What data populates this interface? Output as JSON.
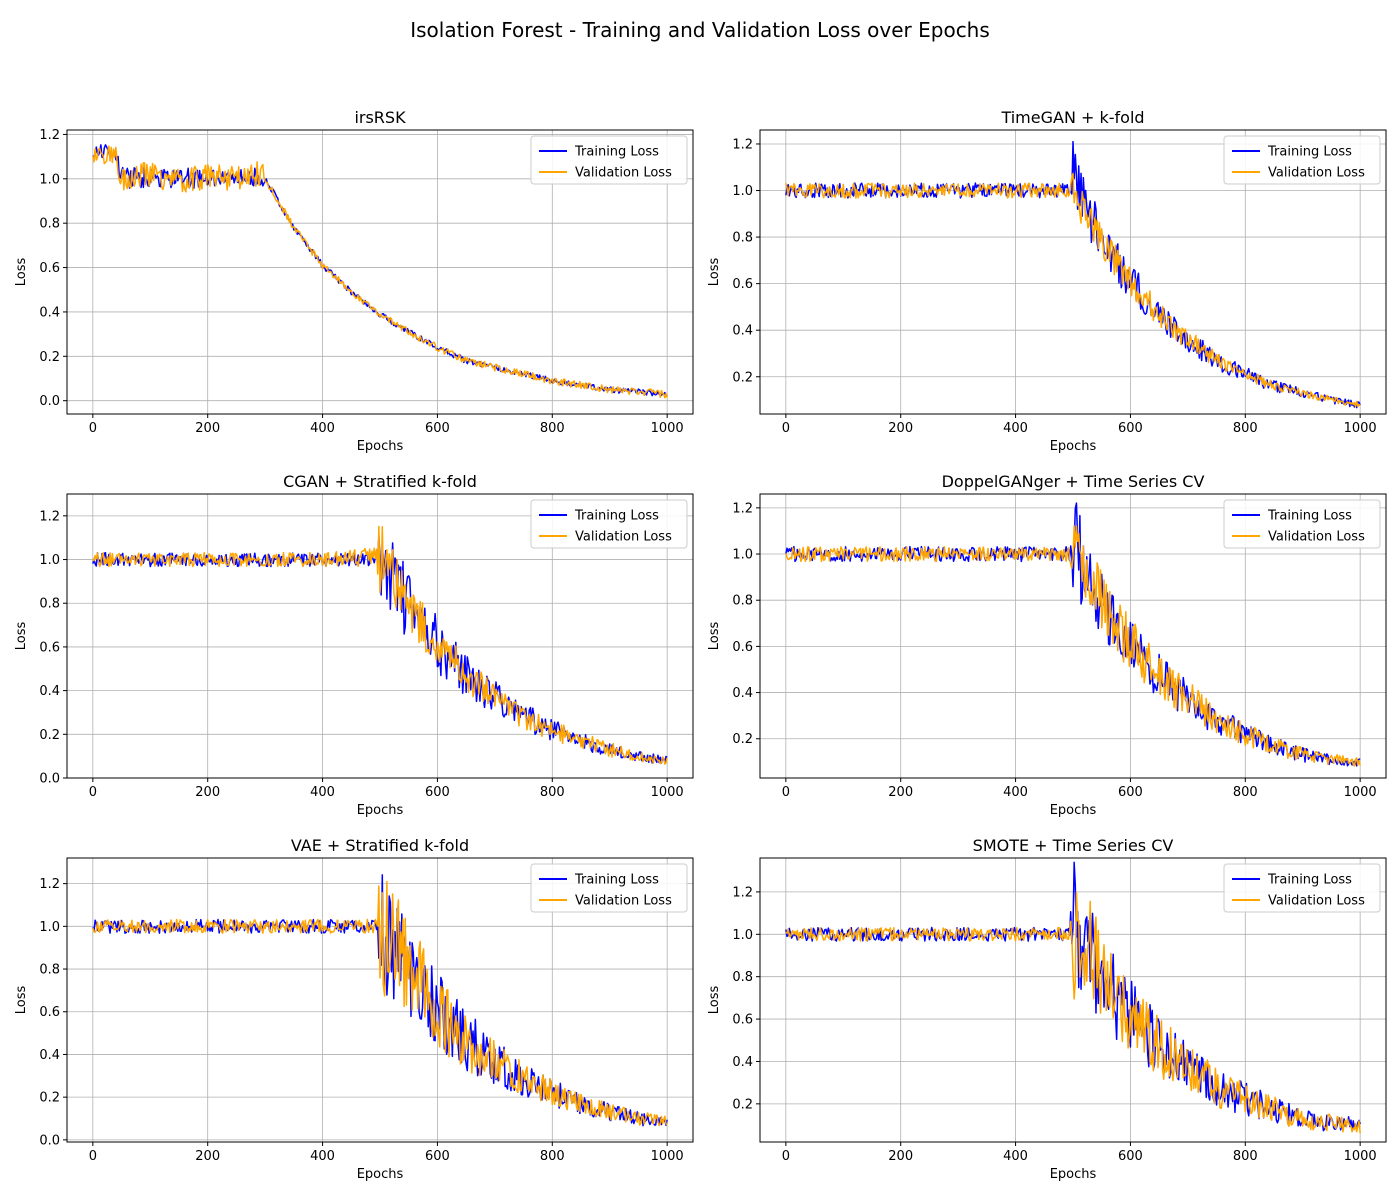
{
  "figure": {
    "title": "Isolation Forest - Training and Validation Loss over Epochs"
  },
  "colors": {
    "training": "#0000ff",
    "validation": "#ffa500",
    "grid": "#b0b0b0"
  },
  "chart_data": [
    {
      "type": "line",
      "title": "irsRSK",
      "xlabel": "Epochs",
      "ylabel": "Loss",
      "xlim": [
        -45,
        1045
      ],
      "ylim": [
        -0.06,
        1.22
      ],
      "xticks": [
        0,
        200,
        400,
        600,
        800,
        1000
      ],
      "yticks": [
        0.0,
        0.2,
        0.4,
        0.6,
        0.8,
        1.0,
        1.2
      ],
      "ytick_labels": [
        "0.0",
        "0.2",
        "0.4",
        "0.6",
        "0.8",
        "1.0",
        "1.2"
      ],
      "grid": true,
      "legend": "top-right",
      "series": [
        {
          "name": "Training Loss",
          "color": "#0000ff",
          "x": [
            0,
            10,
            25,
            40,
            50,
            60,
            100,
            150,
            200,
            250,
            295,
            300,
            350,
            400,
            450,
            500,
            550,
            600,
            650,
            700,
            750,
            800,
            850,
            900,
            950,
            1000
          ],
          "y": [
            1.1,
            1.13,
            1.12,
            1.11,
            1.01,
            1.0,
            1.01,
            1.0,
            1.0,
            1.0,
            1.01,
            1.0,
            0.78,
            0.61,
            0.49,
            0.39,
            0.31,
            0.24,
            0.18,
            0.15,
            0.12,
            0.09,
            0.07,
            0.05,
            0.04,
            0.03
          ],
          "noise": [
            0.02,
            0.02,
            0.02,
            0.02,
            0.03,
            0.03,
            0.03,
            0.03,
            0.03,
            0.03,
            0.03,
            0.01,
            0.008,
            0.008,
            0.008,
            0.008,
            0.008,
            0.008,
            0.008,
            0.008,
            0.008,
            0.008,
            0.008,
            0.008,
            0.008,
            0.008
          ]
        },
        {
          "name": "Validation Loss",
          "color": "#ffa500",
          "x": [
            0,
            10,
            25,
            40,
            50,
            60,
            100,
            150,
            200,
            250,
            295,
            300,
            350,
            400,
            450,
            500,
            550,
            600,
            650,
            700,
            750,
            800,
            850,
            900,
            950,
            1000
          ],
          "y": [
            1.1,
            1.12,
            1.11,
            1.1,
            1.0,
            1.01,
            1.02,
            0.99,
            1.01,
            1.0,
            1.02,
            1.0,
            0.78,
            0.61,
            0.49,
            0.39,
            0.31,
            0.24,
            0.18,
            0.15,
            0.12,
            0.09,
            0.07,
            0.05,
            0.04,
            0.03
          ],
          "noise": [
            0.03,
            0.03,
            0.03,
            0.03,
            0.035,
            0.035,
            0.035,
            0.035,
            0.035,
            0.035,
            0.04,
            0.01,
            0.01,
            0.01,
            0.01,
            0.01,
            0.01,
            0.01,
            0.01,
            0.01,
            0.01,
            0.01,
            0.01,
            0.01,
            0.01,
            0.012
          ]
        }
      ]
    },
    {
      "type": "line",
      "title": "TimeGAN + k-fold",
      "xlabel": "Epochs",
      "ylabel": "Loss",
      "xlim": [
        -45,
        1045
      ],
      "ylim": [
        0.04,
        1.26
      ],
      "xticks": [
        0,
        200,
        400,
        600,
        800,
        1000
      ],
      "yticks": [
        0.2,
        0.4,
        0.6,
        0.8,
        1.0,
        1.2
      ],
      "ytick_labels": [
        "0.2",
        "0.4",
        "0.6",
        "0.8",
        "1.0",
        "1.2"
      ],
      "grid": true,
      "legend": "top-right",
      "series": [
        {
          "name": "Training Loss",
          "color": "#0000ff",
          "x": [
            0,
            100,
            200,
            300,
            400,
            495,
            500,
            520,
            550,
            600,
            650,
            700,
            750,
            800,
            850,
            900,
            950,
            1000
          ],
          "y": [
            1.0,
            1.0,
            1.0,
            1.0,
            1.0,
            1.0,
            1.05,
            0.95,
            0.78,
            0.61,
            0.47,
            0.36,
            0.27,
            0.21,
            0.16,
            0.13,
            0.1,
            0.08
          ],
          "noise": [
            0.02,
            0.02,
            0.02,
            0.02,
            0.02,
            0.02,
            0.12,
            0.08,
            0.06,
            0.05,
            0.04,
            0.035,
            0.025,
            0.02,
            0.015,
            0.012,
            0.01,
            0.01
          ]
        },
        {
          "name": "Validation Loss",
          "color": "#ffa500",
          "x": [
            0,
            100,
            200,
            300,
            400,
            495,
            500,
            520,
            550,
            600,
            650,
            700,
            750,
            800,
            850,
            900,
            950,
            1000
          ],
          "y": [
            1.0,
            1.0,
            1.0,
            1.0,
            1.0,
            1.0,
            1.0,
            0.92,
            0.78,
            0.61,
            0.47,
            0.36,
            0.27,
            0.21,
            0.16,
            0.13,
            0.1,
            0.08
          ],
          "noise": [
            0.02,
            0.02,
            0.02,
            0.02,
            0.02,
            0.02,
            0.06,
            0.05,
            0.045,
            0.04,
            0.035,
            0.03,
            0.02,
            0.015,
            0.012,
            0.01,
            0.01,
            0.008
          ]
        }
      ]
    },
    {
      "type": "line",
      "title": "CGAN + Stratified k-fold",
      "xlabel": "Epochs",
      "ylabel": "Loss",
      "xlim": [
        -45,
        1045
      ],
      "ylim": [
        0.0,
        1.3
      ],
      "xticks": [
        0,
        200,
        400,
        600,
        800,
        1000
      ],
      "yticks": [
        0.0,
        0.2,
        0.4,
        0.6,
        0.8,
        1.0,
        1.2
      ],
      "ytick_labels": [
        "0.0",
        "0.2",
        "0.4",
        "0.6",
        "0.8",
        "1.0",
        "1.2"
      ],
      "grid": true,
      "legend": "top-right",
      "series": [
        {
          "name": "Training Loss",
          "color": "#0000ff",
          "x": [
            0,
            100,
            200,
            300,
            400,
            495,
            500,
            520,
            550,
            600,
            650,
            700,
            750,
            800,
            850,
            900,
            950,
            1000
          ],
          "y": [
            1.0,
            1.0,
            1.0,
            1.0,
            1.0,
            1.0,
            1.0,
            0.95,
            0.78,
            0.61,
            0.47,
            0.37,
            0.28,
            0.22,
            0.17,
            0.13,
            0.1,
            0.08
          ],
          "noise": [
            0.02,
            0.02,
            0.02,
            0.02,
            0.02,
            0.02,
            0.1,
            0.12,
            0.1,
            0.08,
            0.06,
            0.05,
            0.04,
            0.03,
            0.025,
            0.02,
            0.015,
            0.012
          ]
        },
        {
          "name": "Validation Loss",
          "color": "#ffa500",
          "x": [
            0,
            100,
            200,
            300,
            400,
            495,
            500,
            520,
            550,
            600,
            650,
            700,
            750,
            800,
            850,
            900,
            950,
            1000
          ],
          "y": [
            1.0,
            1.0,
            1.0,
            1.0,
            1.0,
            1.01,
            1.0,
            0.93,
            0.78,
            0.61,
            0.47,
            0.37,
            0.28,
            0.22,
            0.17,
            0.13,
            0.1,
            0.08
          ],
          "noise": [
            0.02,
            0.02,
            0.02,
            0.02,
            0.02,
            0.03,
            0.14,
            0.08,
            0.07,
            0.06,
            0.05,
            0.04,
            0.035,
            0.03,
            0.025,
            0.02,
            0.015,
            0.012
          ]
        }
      ]
    },
    {
      "type": "line",
      "title": "DoppelGANger + Time Series CV",
      "xlabel": "Epochs",
      "ylabel": "Loss",
      "xlim": [
        -45,
        1045
      ],
      "ylim": [
        0.03,
        1.26
      ],
      "xticks": [
        0,
        200,
        400,
        600,
        800,
        1000
      ],
      "yticks": [
        0.2,
        0.4,
        0.6,
        0.8,
        1.0,
        1.2
      ],
      "ytick_labels": [
        "0.2",
        "0.4",
        "0.6",
        "0.8",
        "1.0",
        "1.2"
      ],
      "grid": true,
      "legend": "top-right",
      "series": [
        {
          "name": "Training Loss",
          "color": "#0000ff",
          "x": [
            0,
            100,
            200,
            300,
            400,
            495,
            500,
            520,
            550,
            600,
            650,
            700,
            750,
            800,
            850,
            900,
            950,
            1000
          ],
          "y": [
            1.0,
            1.0,
            1.0,
            1.0,
            1.0,
            1.0,
            1.05,
            0.95,
            0.78,
            0.61,
            0.47,
            0.37,
            0.28,
            0.22,
            0.17,
            0.13,
            0.11,
            0.1
          ],
          "noise": [
            0.02,
            0.02,
            0.02,
            0.02,
            0.02,
            0.02,
            0.15,
            0.12,
            0.09,
            0.07,
            0.06,
            0.05,
            0.04,
            0.03,
            0.025,
            0.02,
            0.015,
            0.012
          ]
        },
        {
          "name": "Validation Loss",
          "color": "#ffa500",
          "x": [
            0,
            100,
            200,
            300,
            400,
            495,
            500,
            520,
            550,
            600,
            650,
            700,
            750,
            800,
            850,
            900,
            950,
            1000
          ],
          "y": [
            1.0,
            1.0,
            1.0,
            1.0,
            1.0,
            1.0,
            1.0,
            0.93,
            0.78,
            0.61,
            0.47,
            0.37,
            0.28,
            0.22,
            0.17,
            0.13,
            0.11,
            0.1
          ],
          "noise": [
            0.02,
            0.02,
            0.02,
            0.02,
            0.02,
            0.02,
            0.1,
            0.12,
            0.09,
            0.07,
            0.06,
            0.05,
            0.04,
            0.03,
            0.025,
            0.02,
            0.015,
            0.012
          ]
        }
      ]
    },
    {
      "type": "line",
      "title": "VAE + Stratified k-fold",
      "xlabel": "Epochs",
      "ylabel": "Loss",
      "xlim": [
        -45,
        1045
      ],
      "ylim": [
        -0.01,
        1.32
      ],
      "xticks": [
        0,
        200,
        400,
        600,
        800,
        1000
      ],
      "yticks": [
        0.0,
        0.2,
        0.4,
        0.6,
        0.8,
        1.0,
        1.2
      ],
      "ytick_labels": [
        "0.0",
        "0.2",
        "0.4",
        "0.6",
        "0.8",
        "1.0",
        "1.2"
      ],
      "grid": true,
      "legend": "top-right",
      "series": [
        {
          "name": "Training Loss",
          "color": "#0000ff",
          "x": [
            0,
            100,
            200,
            300,
            400,
            495,
            500,
            520,
            550,
            600,
            650,
            700,
            750,
            800,
            850,
            900,
            950,
            1000
          ],
          "y": [
            1.0,
            1.0,
            1.0,
            1.0,
            1.0,
            1.0,
            0.95,
            0.92,
            0.78,
            0.61,
            0.47,
            0.37,
            0.28,
            0.22,
            0.17,
            0.13,
            0.1,
            0.08
          ],
          "noise": [
            0.02,
            0.02,
            0.02,
            0.02,
            0.02,
            0.02,
            0.2,
            0.16,
            0.13,
            0.11,
            0.09,
            0.07,
            0.05,
            0.04,
            0.03,
            0.025,
            0.02,
            0.015
          ]
        },
        {
          "name": "Validation Loss",
          "color": "#ffa500",
          "x": [
            0,
            100,
            200,
            300,
            400,
            495,
            500,
            520,
            550,
            600,
            650,
            700,
            750,
            800,
            850,
            900,
            950,
            1000
          ],
          "y": [
            1.0,
            1.0,
            1.0,
            1.0,
            1.0,
            1.0,
            0.98,
            0.95,
            0.8,
            0.62,
            0.47,
            0.37,
            0.28,
            0.22,
            0.17,
            0.13,
            0.1,
            0.09
          ],
          "noise": [
            0.02,
            0.02,
            0.02,
            0.02,
            0.02,
            0.02,
            0.22,
            0.16,
            0.14,
            0.12,
            0.09,
            0.07,
            0.05,
            0.04,
            0.03,
            0.025,
            0.02,
            0.015
          ]
        }
      ]
    },
    {
      "type": "line",
      "title": "SMOTE + Time Series CV",
      "xlabel": "Epochs",
      "ylabel": "Loss",
      "xlim": [
        -45,
        1045
      ],
      "ylim": [
        0.02,
        1.36
      ],
      "xticks": [
        0,
        200,
        400,
        600,
        800,
        1000
      ],
      "yticks": [
        0.2,
        0.4,
        0.6,
        0.8,
        1.0,
        1.2
      ],
      "ytick_labels": [
        "0.2",
        "0.4",
        "0.6",
        "0.8",
        "1.0",
        "1.2"
      ],
      "grid": true,
      "legend": "top-right",
      "series": [
        {
          "name": "Training Loss",
          "color": "#0000ff",
          "x": [
            0,
            100,
            200,
            300,
            400,
            495,
            500,
            520,
            550,
            600,
            650,
            700,
            750,
            800,
            850,
            900,
            950,
            1000
          ],
          "y": [
            1.0,
            1.0,
            1.0,
            1.0,
            1.0,
            1.0,
            1.1,
            0.95,
            0.78,
            0.61,
            0.47,
            0.37,
            0.28,
            0.22,
            0.17,
            0.13,
            0.11,
            0.1
          ],
          "noise": [
            0.02,
            0.02,
            0.02,
            0.02,
            0.02,
            0.02,
            0.2,
            0.16,
            0.13,
            0.11,
            0.09,
            0.07,
            0.06,
            0.05,
            0.04,
            0.03,
            0.025,
            0.02
          ]
        },
        {
          "name": "Validation Loss",
          "color": "#ffa500",
          "x": [
            0,
            100,
            200,
            300,
            400,
            495,
            500,
            520,
            550,
            600,
            650,
            700,
            750,
            800,
            850,
            900,
            950,
            1000
          ],
          "y": [
            1.0,
            1.0,
            1.0,
            1.0,
            1.0,
            1.0,
            0.98,
            1.0,
            0.8,
            0.62,
            0.47,
            0.37,
            0.28,
            0.22,
            0.17,
            0.13,
            0.11,
            0.09
          ],
          "noise": [
            0.02,
            0.02,
            0.02,
            0.02,
            0.02,
            0.02,
            0.2,
            0.16,
            0.13,
            0.11,
            0.09,
            0.07,
            0.06,
            0.05,
            0.04,
            0.03,
            0.025,
            0.02
          ]
        }
      ]
    }
  ]
}
